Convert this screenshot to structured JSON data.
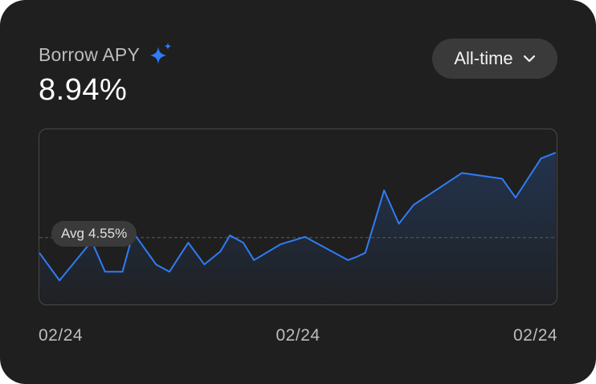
{
  "card": {
    "title": "Borrow APY",
    "title_icon": "sparkle-icon",
    "value": "8.94%",
    "accent_color": "#2f7cf6"
  },
  "range_select": {
    "selected": "All-time",
    "icon": "chevron-down-icon"
  },
  "avg": {
    "label": "Avg",
    "value_text": "4.55%"
  },
  "chart_data": {
    "type": "area",
    "title": "",
    "xlabel": "",
    "ylabel": "",
    "x_ticks": [
      "02/24",
      "02/24",
      "02/24"
    ],
    "grid": false,
    "ylim": [
      0,
      12
    ],
    "average": 4.55,
    "series": [
      {
        "color": "#2f7cf6",
        "x": [
          0,
          1.5,
          3.9,
          4.9,
          6.2,
          7.0,
          8.7,
          9.7,
          11.1,
          12.3,
          13.5,
          14.2,
          15.2,
          16.0,
          18.0,
          19.1,
          19.8,
          22.6,
          23.0,
          23.6,
          24.3,
          25.7,
          26.8,
          27.9,
          31.5,
          34.5,
          35.5,
          37.4,
          38.5
        ],
        "values": [
          3.5,
          1.6,
          4.3,
          2.2,
          2.2,
          4.9,
          2.7,
          2.2,
          4.2,
          2.7,
          3.6,
          4.7,
          4.2,
          3.0,
          4.1,
          4.4,
          4.6,
          3.2,
          3.0,
          3.2,
          3.5,
          7.8,
          5.5,
          6.8,
          9.0,
          8.6,
          7.3,
          10.0,
          10.4
        ]
      }
    ]
  }
}
